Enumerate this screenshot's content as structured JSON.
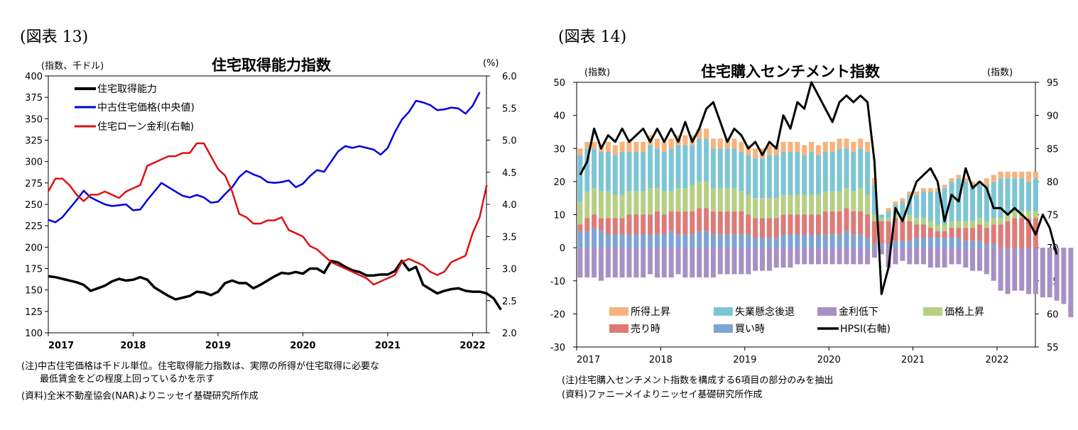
{
  "left": {
    "fig_label": "(図表 13)",
    "unit_left": "(指数、千ドル)",
    "unit_right": "(%)",
    "notes": [
      "(注)中古住宅価格は千ドル単位。住宅取得能力指数は、実際の所得が住宅取得に必要な",
      "　　最低賃金をどの程度上回っているかを示す",
      "(資料)全米不動産協会(NAR)よりニッセイ基礎研究所作成"
    ]
  },
  "right": {
    "fig_label": "(図表 14)",
    "unit_left": "(指数)",
    "unit_right": "(指数)",
    "notes": [
      "(注)住宅購入センチメント指数を構成する6項目の部分のみを抽出",
      "(資料)ファニーメイよりニッセイ基礎研究所作成"
    ]
  },
  "colors": {
    "black": "#000000",
    "blue": "#0000dd",
    "red": "#dd1111",
    "income": "#f9b27a",
    "unemployment": "#7ec5d4",
    "rate": "#a690c4",
    "price": "#b6cf85",
    "sell": "#dd7b78",
    "buy": "#7ea4d4"
  },
  "chart_data": [
    {
      "type": "line",
      "title": "住宅取得能力指数",
      "x_tick_labels": [
        "2017",
        "2018",
        "2019",
        "2020",
        "2021",
        "2022"
      ],
      "x_start": 2017.0,
      "x_step": 0.08333,
      "y_left": {
        "min": 100,
        "max": 400,
        "step": 25
      },
      "y_right": {
        "min": 2.0,
        "max": 6.0,
        "step": 0.5
      },
      "legend": [
        "住宅取得能力",
        "中古住宅価格(中央値)",
        "住宅ローン金利(右軸)"
      ],
      "series": [
        {
          "name": "住宅取得能力",
          "axis": "left",
          "color": "black",
          "values": [
            166,
            165,
            163,
            161,
            159,
            156,
            149,
            152,
            155,
            160,
            163,
            161,
            162,
            165,
            162,
            153,
            148,
            143,
            139,
            141,
            143,
            148,
            147,
            144,
            148,
            158,
            161,
            158,
            158,
            152,
            156,
            161,
            166,
            170,
            169,
            171,
            169,
            175,
            175,
            170,
            184,
            182,
            177,
            173,
            171,
            167,
            167,
            168,
            168,
            172,
            184,
            173,
            177,
            156,
            151,
            146,
            149,
            151,
            152,
            149,
            148,
            148,
            146,
            140,
            127
          ]
        },
        {
          "name": "中古住宅価格(中央値)",
          "axis": "left",
          "color": "blue",
          "values": [
            232,
            229,
            235,
            245,
            255,
            266,
            258,
            254,
            250,
            248,
            249,
            250,
            243,
            244,
            255,
            265,
            275,
            270,
            265,
            260,
            258,
            261,
            258,
            252,
            253,
            262,
            270,
            282,
            289,
            285,
            282,
            276,
            275,
            276,
            278,
            270,
            274,
            283,
            290,
            288,
            300,
            312,
            318,
            316,
            318,
            316,
            314,
            308,
            316,
            334,
            349,
            358,
            371,
            369,
            366,
            360,
            361,
            363,
            362,
            356,
            365,
            381
          ]
        },
        {
          "name": "住宅ローン金利(右軸)",
          "axis": "right",
          "color": "red",
          "values": [
            4.2,
            4.4,
            4.4,
            4.3,
            4.15,
            4.05,
            4.15,
            4.15,
            4.2,
            4.15,
            4.1,
            4.2,
            4.25,
            4.3,
            4.6,
            4.65,
            4.7,
            4.75,
            4.75,
            4.8,
            4.8,
            4.95,
            4.95,
            4.75,
            4.55,
            4.45,
            4.2,
            3.85,
            3.8,
            3.7,
            3.7,
            3.75,
            3.75,
            3.8,
            3.6,
            3.55,
            3.5,
            3.35,
            3.3,
            3.2,
            3.1,
            3.05,
            3.0,
            2.95,
            2.9,
            2.85,
            2.75,
            2.8,
            2.85,
            2.9,
            3.1,
            3.15,
            3.1,
            3.05,
            2.95,
            2.9,
            2.95,
            3.1,
            3.15,
            3.2,
            3.55,
            3.8,
            4.3
          ]
        }
      ]
    },
    {
      "type": "bar",
      "stacked": true,
      "title": "住宅購入センチメント指数",
      "x_tick_labels": [
        "2017",
        "2018",
        "2019",
        "2020",
        "2021",
        "2022"
      ],
      "x_start": 2017.0,
      "x_step": 0.08333,
      "y_left": {
        "min": -30,
        "max": 50,
        "step": 10
      },
      "y_right": {
        "min": 55,
        "max": 95,
        "step": 5
      },
      "legend": [
        "所得上昇",
        "失業懸念後退",
        "金利低下",
        "価格上昇",
        "売り時",
        "買い時",
        "HPSI(右軸)"
      ],
      "series": [
        {
          "name": "買い時",
          "color": "buy",
          "values": [
            5,
            5,
            6,
            5,
            4,
            4,
            4,
            4,
            4,
            4,
            4,
            4,
            4,
            5,
            4,
            4,
            4,
            5,
            5,
            4,
            4,
            4,
            4,
            4,
            4,
            3,
            3,
            3,
            3,
            4,
            4,
            4,
            4,
            4,
            4,
            4,
            4,
            4,
            5,
            4,
            4,
            3,
            1,
            1,
            1,
            2,
            2,
            2,
            3,
            3,
            3,
            3,
            3,
            3,
            3,
            2,
            2,
            2,
            1,
            1,
            0,
            0,
            0,
            0,
            0,
            0
          ]
        },
        {
          "name": "売り時",
          "color": "sell",
          "values": [
            2,
            4,
            4,
            4,
            5,
            5,
            5,
            6,
            6,
            6,
            6,
            7,
            6,
            6,
            7,
            7,
            7,
            7,
            7,
            7,
            7,
            7,
            7,
            7,
            6,
            6,
            6,
            6,
            6,
            6,
            6,
            6,
            6,
            6,
            6,
            7,
            7,
            7,
            7,
            7,
            7,
            7,
            7,
            7,
            7,
            7,
            6,
            6,
            4,
            4,
            3,
            2,
            2,
            3,
            3,
            4,
            4,
            5,
            5,
            6,
            7,
            8,
            9,
            9,
            9,
            9
          ]
        },
        {
          "name": "価格上昇",
          "color": "price",
          "values": [
            7,
            8,
            8,
            8,
            8,
            7,
            7,
            7,
            7,
            7,
            8,
            7,
            7,
            6,
            7,
            7,
            8,
            8,
            8,
            7,
            7,
            7,
            7,
            6,
            6,
            6,
            6,
            6,
            6,
            6,
            6,
            6,
            6,
            6,
            6,
            6,
            6,
            6,
            6,
            6,
            7,
            6,
            2,
            1,
            1,
            1,
            1,
            2,
            2,
            2,
            2,
            2,
            2,
            2,
            2,
            2,
            2,
            2,
            2,
            2,
            2,
            2,
            2,
            2,
            2,
            2
          ]
        },
        {
          "name": "失業懸念後退",
          "color": "unemployment",
          "values": [
            14,
            13,
            12,
            12,
            12,
            12,
            13,
            12,
            12,
            12,
            13,
            12,
            12,
            13,
            13,
            13,
            12,
            13,
            13,
            12,
            12,
            12,
            12,
            12,
            12,
            12,
            12,
            13,
            13,
            13,
            13,
            13,
            12,
            13,
            12,
            12,
            12,
            13,
            12,
            12,
            12,
            13,
            9,
            1,
            2,
            3,
            5,
            6,
            7,
            8,
            9,
            10,
            11,
            12,
            13,
            12,
            11,
            10,
            11,
            11,
            12,
            11,
            10,
            10,
            9,
            10
          ]
        },
        {
          "name": "所得上昇",
          "color": "income",
          "values": [
            2,
            2,
            2,
            2,
            3,
            3,
            3,
            3,
            3,
            3,
            3,
            3,
            3,
            3,
            3,
            3,
            3,
            3,
            3,
            3,
            3,
            3,
            3,
            3,
            3,
            3,
            3,
            3,
            3,
            3,
            3,
            3,
            3,
            3,
            3,
            3,
            3,
            3,
            3,
            3,
            3,
            3,
            2,
            0,
            1,
            1,
            1,
            1,
            1,
            1,
            1,
            1,
            1,
            1,
            1,
            1,
            1,
            1,
            2,
            2,
            2,
            2,
            2,
            2,
            3,
            2
          ]
        },
        {
          "name": "金利低下",
          "color": "rate",
          "values": [
            -9,
            -9,
            -9,
            -10,
            -9,
            -9,
            -9,
            -9,
            -9,
            -9,
            -8,
            -9,
            -9,
            -9,
            -8,
            -9,
            -9,
            -9,
            -9,
            -9,
            -8,
            -8,
            -8,
            -8,
            -8,
            -7,
            -7,
            -7,
            -6,
            -6,
            -6,
            -5,
            -5,
            -5,
            -5,
            -5,
            -5,
            -5,
            -5,
            -5,
            -5,
            -5,
            -3,
            -2,
            -6,
            -5,
            -4,
            -5,
            -5,
            -5,
            -6,
            -6,
            -6,
            -5,
            -5,
            -6,
            -7,
            -7,
            -8,
            -10,
            -13,
            -14,
            -13,
            -13,
            -14,
            -14,
            -15,
            -15,
            -16,
            -17,
            -21
          ]
        },
        {
          "name": "HPSI(右軸)",
          "type": "line",
          "axis": "right",
          "color": "black",
          "values": [
            81,
            83,
            88,
            85,
            87,
            86,
            88,
            86,
            87,
            88,
            86,
            88,
            86,
            88,
            86,
            89,
            86,
            88,
            91,
            92,
            89,
            86,
            88,
            87,
            85,
            86,
            84,
            86,
            85,
            90,
            88,
            92,
            91,
            95,
            93,
            91,
            89,
            92,
            93,
            92,
            93,
            92,
            83,
            63,
            67,
            76,
            74,
            77,
            80,
            81,
            82,
            80,
            74,
            78,
            77,
            82,
            79,
            80,
            79,
            76,
            76,
            75,
            76,
            75,
            74,
            72,
            75,
            73,
            69
          ]
        }
      ]
    }
  ]
}
